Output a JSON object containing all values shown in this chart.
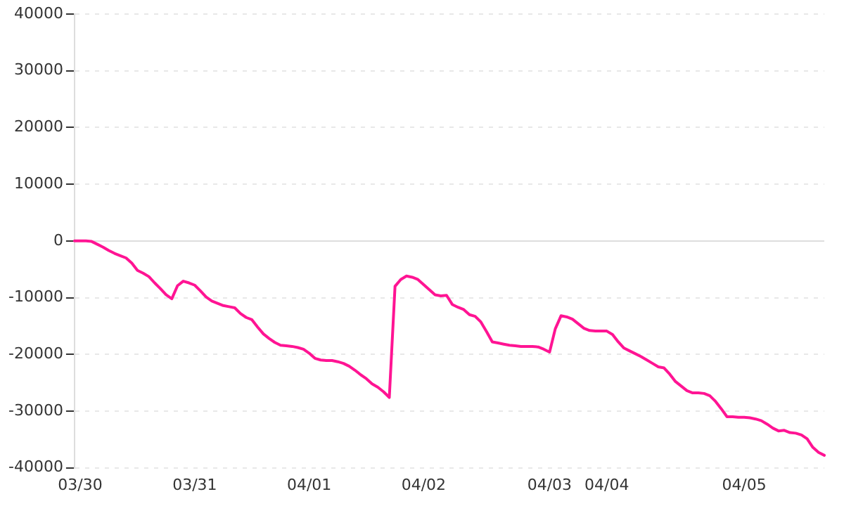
{
  "chart_data": {
    "type": "line",
    "categories": [
      null,
      "03/30",
      null,
      null,
      null,
      null,
      null,
      null,
      null,
      null,
      null,
      null,
      null,
      null,
      null,
      null,
      null,
      null,
      null,
      null,
      null,
      "03/31",
      null,
      null,
      null,
      null,
      null,
      null,
      null,
      null,
      null,
      null,
      null,
      null,
      null,
      null,
      null,
      null,
      null,
      null,
      null,
      "04/01",
      null,
      null,
      null,
      null,
      null,
      null,
      null,
      null,
      null,
      null,
      null,
      null,
      null,
      null,
      null,
      null,
      null,
      null,
      null,
      "04/02",
      null,
      null,
      null,
      null,
      null,
      null,
      null,
      null,
      null,
      null,
      null,
      null,
      null,
      null,
      null,
      null,
      null,
      null,
      null,
      null,
      null,
      "04/03",
      null,
      null,
      null,
      null,
      null,
      null,
      null,
      null,
      null,
      "04/04",
      null,
      null,
      null,
      null,
      null,
      null,
      null,
      null,
      null,
      null,
      null,
      null,
      null,
      null,
      null,
      null,
      null,
      null,
      null,
      null,
      null,
      null,
      null,
      "04/05",
      null,
      null,
      null,
      null,
      null,
      null,
      null,
      null,
      null,
      null,
      null,
      null,
      null,
      null
    ],
    "ylim": [
      -40000,
      40000
    ],
    "yticks": [
      -40000,
      -30000,
      -20000,
      -10000,
      0,
      10000,
      20000,
      30000,
      40000
    ],
    "grid": "y",
    "legend": false,
    "marker": "none",
    "line_style": "solid",
    "series": [
      {
        "color": "#ff1493",
        "values": [
          0,
          0,
          0,
          -100,
          -600,
          -1100,
          -1700,
          -2200,
          -2600,
          -3000,
          -3900,
          -5200,
          -5700,
          -6300,
          -7400,
          -8400,
          -9500,
          -10200,
          -7900,
          -7100,
          -7400,
          -7800,
          -8800,
          -9900,
          -10600,
          -11000,
          -11400,
          -11600,
          -11800,
          -12800,
          -13500,
          -13900,
          -15200,
          -16400,
          -17200,
          -17900,
          -18400,
          -18500,
          -18600,
          -18800,
          -19100,
          -19800,
          -20700,
          -21000,
          -21100,
          -21100,
          -21300,
          -21600,
          -22100,
          -22800,
          -23600,
          -24300,
          -25200,
          -25800,
          -26600,
          -27600,
          -8000,
          -6800,
          -6200,
          -6400,
          -6800,
          -7700,
          -8600,
          -9500,
          -9700,
          -9600,
          -11200,
          -11700,
          -12100,
          -13000,
          -13300,
          -14300,
          -16000,
          -17800,
          -18000,
          -18200,
          -18400,
          -18500,
          -18600,
          -18600,
          -18600,
          -18700,
          -19100,
          -19600,
          -15500,
          -13200,
          -13400,
          -13800,
          -14600,
          -15400,
          -15800,
          -15900,
          -15900,
          -15900,
          -16500,
          -17800,
          -18900,
          -19400,
          -19900,
          -20400,
          -21000,
          -21600,
          -22200,
          -22400,
          -23500,
          -24800,
          -25600,
          -26400,
          -26800,
          -26800,
          -26900,
          -27300,
          -28300,
          -29600,
          -31000,
          -31000,
          -31100,
          -31100,
          -31200,
          -31400,
          -31700,
          -32300,
          -33000,
          -33500,
          -33400,
          -33800,
          -33900,
          -34200,
          -34900,
          -36400,
          -37300,
          -37800
        ]
      }
    ]
  }
}
